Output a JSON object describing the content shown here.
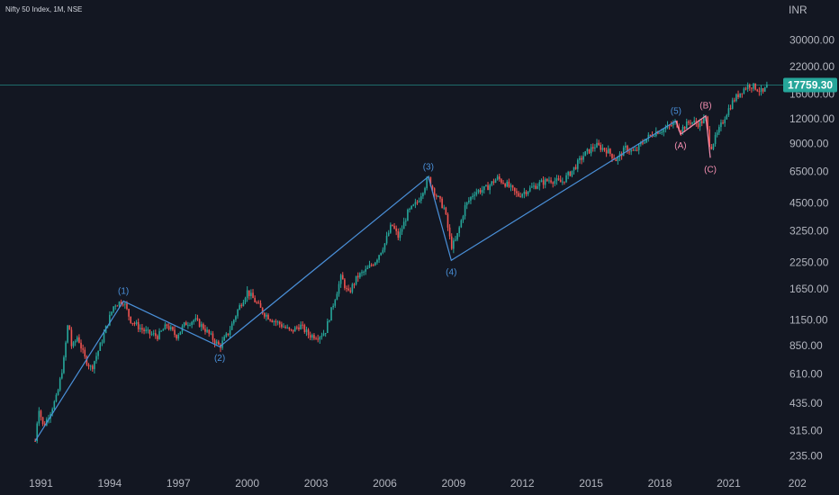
{
  "header": {
    "symbol_title": "Nifty 50 Index, 1M, NSE",
    "currency": "INR"
  },
  "colors": {
    "background": "#131722",
    "up_candle": "#26a69a",
    "down_candle": "#ef5350",
    "impulse_wave": "#4a90d9",
    "corrective_wave": "#f48fb1",
    "price_line": "#1e6b6b",
    "last_price_bg": "#26a69a"
  },
  "chart_data": {
    "type": "candlestick",
    "y_scale": "log",
    "y_ticks": [
      "30000.00",
      "22000.00",
      "16000.00",
      "12000.00",
      "9000.00",
      "6500.00",
      "4500.00",
      "3250.00",
      "2250.00",
      "1650.00",
      "1150.00",
      "850.00",
      "610.00",
      "435.00",
      "315.00",
      "235.00"
    ],
    "x_ticks": [
      "1991",
      "1994",
      "1997",
      "2000",
      "2003",
      "2006",
      "2009",
      "2012",
      "2015",
      "2018",
      "2021",
      "202"
    ],
    "last_price": "17759.30",
    "ylim": [
      200,
      38000
    ],
    "xlim": [
      1990.0,
      2023.3
    ],
    "price_path": [
      [
        1990.75,
        280
      ],
      [
        1990.9,
        420
      ],
      [
        1991.1,
        330
      ],
      [
        1991.35,
        380
      ],
      [
        1991.7,
        470
      ],
      [
        1992.0,
        720
      ],
      [
        1992.2,
        1150
      ],
      [
        1992.35,
        820
      ],
      [
        1992.6,
        950
      ],
      [
        1992.9,
        740
      ],
      [
        1993.2,
        650
      ],
      [
        1993.6,
        860
      ],
      [
        1993.9,
        1100
      ],
      [
        1994.2,
        1380
      ],
      [
        1994.6,
        1430
      ],
      [
        1994.9,
        1150
      ],
      [
        1995.3,
        1050
      ],
      [
        1995.7,
        980
      ],
      [
        1996.1,
        950
      ],
      [
        1996.5,
        1080
      ],
      [
        1996.9,
        950
      ],
      [
        1997.3,
        1100
      ],
      [
        1997.7,
        1150
      ],
      [
        1998.1,
        1050
      ],
      [
        1998.5,
        920
      ],
      [
        1998.8,
        840
      ],
      [
        1999.2,
        1000
      ],
      [
        1999.6,
        1300
      ],
      [
        2000.0,
        1600
      ],
      [
        2000.3,
        1450
      ],
      [
        2000.7,
        1250
      ],
      [
        2001.1,
        1150
      ],
      [
        2001.5,
        1080
      ],
      [
        2001.9,
        1000
      ],
      [
        2002.3,
        1080
      ],
      [
        2002.7,
        960
      ],
      [
        2003.1,
        950
      ],
      [
        2003.4,
        1000
      ],
      [
        2003.8,
        1450
      ],
      [
        2004.1,
        1900
      ],
      [
        2004.4,
        1550
      ],
      [
        2004.8,
        1900
      ],
      [
        2005.2,
        2050
      ],
      [
        2005.6,
        2300
      ],
      [
        2006.0,
        2800
      ],
      [
        2006.3,
        3500
      ],
      [
        2006.6,
        3000
      ],
      [
        2007.0,
        4000
      ],
      [
        2007.4,
        4500
      ],
      [
        2007.9,
        6000
      ],
      [
        2008.2,
        5000
      ],
      [
        2008.6,
        4200
      ],
      [
        2008.9,
        2700
      ],
      [
        2009.1,
        2900
      ],
      [
        2009.5,
        4300
      ],
      [
        2009.9,
        5100
      ],
      [
        2010.4,
        5300
      ],
      [
        2010.9,
        6000
      ],
      [
        2011.3,
        5600
      ],
      [
        2011.8,
        4900
      ],
      [
        2012.2,
        5200
      ],
      [
        2012.7,
        5600
      ],
      [
        2013.2,
        5900
      ],
      [
        2013.7,
        5700
      ],
      [
        2014.2,
        6600
      ],
      [
        2014.7,
        7900
      ],
      [
        2015.2,
        8800
      ],
      [
        2015.7,
        8300
      ],
      [
        2016.1,
        7400
      ],
      [
        2016.5,
        8500
      ],
      [
        2016.9,
        8100
      ],
      [
        2017.3,
        9300
      ],
      [
        2017.8,
        10300
      ],
      [
        2018.2,
        10600
      ],
      [
        2018.7,
        11500
      ],
      [
        2018.9,
        10500
      ],
      [
        2019.3,
        11600
      ],
      [
        2019.7,
        11300
      ],
      [
        2020.0,
        12000
      ],
      [
        2020.2,
        8500
      ],
      [
        2020.5,
        10000
      ],
      [
        2020.9,
        12800
      ],
      [
        2021.2,
        14800
      ],
      [
        2021.6,
        16800
      ],
      [
        2021.9,
        17800
      ],
      [
        2022.2,
        17200
      ],
      [
        2022.5,
        16200
      ],
      [
        2022.7,
        17759.3
      ]
    ],
    "impulse_waves": [
      {
        "label": "",
        "x": 1990.75,
        "y": 280
      },
      {
        "label": "(1)",
        "x": 1994.6,
        "y": 1430
      },
      {
        "label": "(2)",
        "x": 1998.8,
        "y": 840
      },
      {
        "label": "(3)",
        "x": 2007.9,
        "y": 6100
      },
      {
        "label": "(4)",
        "x": 2008.9,
        "y": 2300
      },
      {
        "label": "(5)",
        "x": 2018.7,
        "y": 11700
      }
    ],
    "corrective_waves": [
      {
        "label": "",
        "x": 2018.7,
        "y": 11700
      },
      {
        "label": "(A)",
        "x": 2018.9,
        "y": 10000
      },
      {
        "label": "(B)",
        "x": 2020.0,
        "y": 12400
      },
      {
        "label": "(C)",
        "x": 2020.2,
        "y": 7600
      }
    ]
  }
}
